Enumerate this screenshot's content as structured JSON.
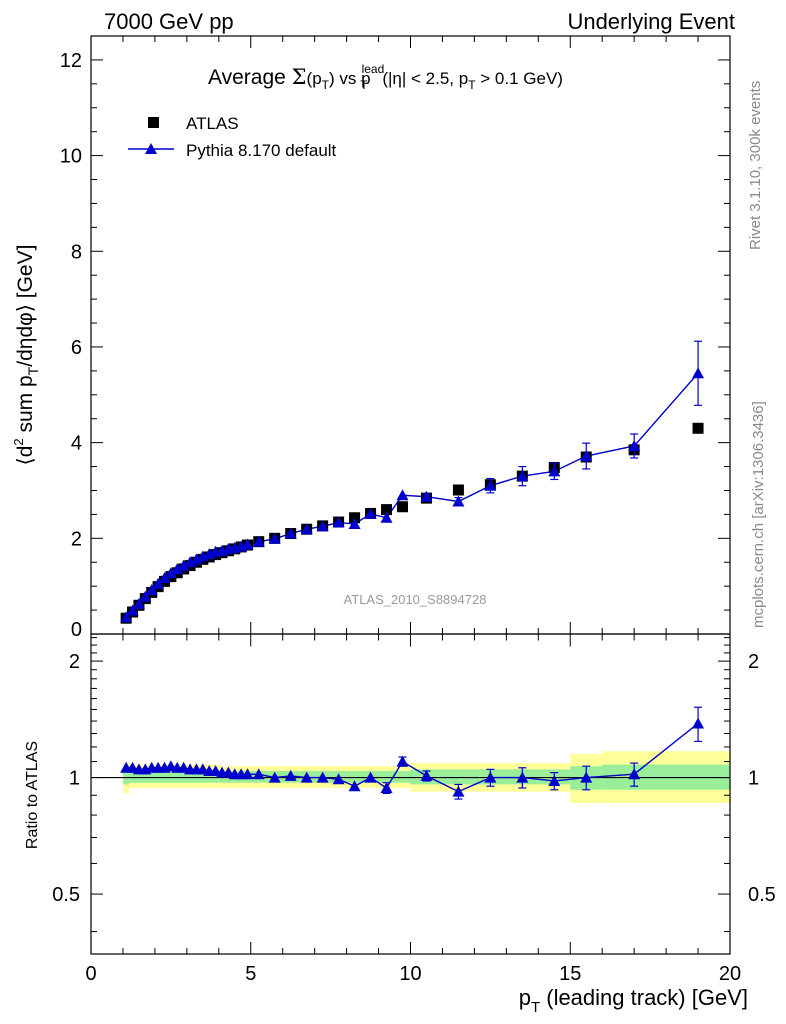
{
  "header": {
    "left": "7000 GeV pp",
    "right": "Underlying Event"
  },
  "title_parts": {
    "prefix": "Average ",
    "sigma": "Σ",
    "arg": "(p",
    "arg_sub": "T",
    "arg_close": ")",
    "vs": " vs p",
    "vs_sup": "lead",
    "vs_sub": "T",
    "cut_a": " (|η| < 2.5, p",
    "cut_sub": "T",
    "cut_b": " > 0.1 GeV)"
  },
  "ylabel_parts": {
    "open": "⟨d",
    "sup2": "2",
    "mid": " sum p",
    "sub": "T",
    "close": "/dηdφ⟩ [GeV]"
  },
  "xlabel_parts": {
    "p": "p",
    "sub": "T",
    "rest": " (leading track) [GeV]"
  },
  "ratio_ylabel": "Ratio to ATLAS",
  "watermark": "ATLAS_2010_S8894728",
  "side_labels": {
    "rivet": "Rivet 3.1.10,  300k events",
    "mcplots": "mcplots.cern.ch [arXiv:1306.3436]"
  },
  "legend": {
    "data_label": "ATLAS",
    "mc_label": "Pythia 8.170 default",
    "position": "top-left"
  },
  "colors": {
    "data": "#000000",
    "mc": "#0000cc",
    "band_inner": "#99ee99",
    "band_outer": "#ffff99"
  },
  "chart_data": [
    {
      "type": "scatter",
      "panel": "main",
      "xlim": [
        0,
        20
      ],
      "ylim": [
        0,
        12.5
      ],
      "xticks": [
        0,
        5,
        10,
        15,
        20
      ],
      "yticks": [
        0,
        2,
        4,
        6,
        8,
        10,
        12
      ],
      "tick_labels_y": [
        "0",
        "2",
        "4",
        "6",
        "8",
        "10",
        "12"
      ],
      "grid": false,
      "series": [
        {
          "name": "ATLAS",
          "marker": "square",
          "x": [
            1.1,
            1.3,
            1.5,
            1.7,
            1.9,
            2.1,
            2.3,
            2.5,
            2.7,
            2.9,
            3.1,
            3.3,
            3.5,
            3.7,
            3.9,
            4.1,
            4.3,
            4.5,
            4.7,
            4.9,
            5.25,
            5.75,
            6.25,
            6.75,
            7.25,
            7.75,
            8.25,
            8.75,
            9.25,
            9.75,
            10.5,
            11.5,
            12.5,
            13.5,
            14.5,
            15.5,
            17.0,
            19.0
          ],
          "y": [
            0.33,
            0.46,
            0.6,
            0.74,
            0.87,
            0.99,
            1.1,
            1.2,
            1.28,
            1.36,
            1.43,
            1.5,
            1.56,
            1.61,
            1.66,
            1.7,
            1.74,
            1.78,
            1.82,
            1.86,
            1.93,
            2.0,
            2.1,
            2.19,
            2.26,
            2.34,
            2.43,
            2.52,
            2.6,
            2.66,
            2.84,
            3.01,
            3.12,
            3.3,
            3.48,
            3.7,
            3.85,
            4.3
          ]
        },
        {
          "name": "Pythia 8.170 default",
          "marker": "triangle",
          "x": [
            1.1,
            1.3,
            1.5,
            1.7,
            1.9,
            2.1,
            2.3,
            2.5,
            2.7,
            2.9,
            3.1,
            3.3,
            3.5,
            3.7,
            3.9,
            4.1,
            4.3,
            4.5,
            4.7,
            4.9,
            5.25,
            5.75,
            6.25,
            6.75,
            7.25,
            7.75,
            8.25,
            8.75,
            9.25,
            9.75,
            10.5,
            11.5,
            12.5,
            13.5,
            14.5,
            15.5,
            17.0,
            19.0
          ],
          "y": [
            0.35,
            0.49,
            0.63,
            0.78,
            0.92,
            1.05,
            1.17,
            1.27,
            1.36,
            1.43,
            1.5,
            1.56,
            1.62,
            1.67,
            1.72,
            1.74,
            1.78,
            1.8,
            1.83,
            1.87,
            1.93,
            1.99,
            2.1,
            2.19,
            2.25,
            2.33,
            2.3,
            2.51,
            2.43,
            2.9,
            2.87,
            2.77,
            3.1,
            3.3,
            3.4,
            3.72,
            3.93,
            5.45
          ],
          "yerr": [
            0,
            0,
            0,
            0,
            0,
            0,
            0,
            0,
            0,
            0,
            0,
            0,
            0,
            0,
            0,
            0,
            0,
            0,
            0,
            0,
            0,
            0,
            0,
            0,
            0,
            0,
            0,
            0,
            0,
            0,
            0.05,
            0.08,
            0.15,
            0.2,
            0.17,
            0.27,
            0.25,
            0.67
          ]
        }
      ]
    },
    {
      "type": "line",
      "panel": "ratio",
      "xlim": [
        0,
        20
      ],
      "ylim": [
        0.35,
        2.35
      ],
      "log_y": true,
      "yticks": [
        0.5,
        1,
        2
      ],
      "tick_labels_y": [
        "0.5",
        "1",
        "2"
      ],
      "tick_labels_x": [
        "0",
        "5",
        "10",
        "15",
        "20"
      ],
      "reference_line": 1,
      "series": [
        {
          "name": "Pythia 8.170 default",
          "x": [
            1.1,
            1.3,
            1.5,
            1.7,
            1.9,
            2.1,
            2.3,
            2.5,
            2.7,
            2.9,
            3.1,
            3.3,
            3.5,
            3.7,
            3.9,
            4.1,
            4.3,
            4.5,
            4.7,
            4.9,
            5.25,
            5.75,
            6.25,
            6.75,
            7.25,
            7.75,
            8.25,
            8.75,
            9.25,
            9.75,
            10.5,
            11.5,
            12.5,
            13.5,
            14.5,
            15.5,
            17.0,
            19.0
          ],
          "y": [
            1.06,
            1.06,
            1.05,
            1.05,
            1.06,
            1.06,
            1.06,
            1.07,
            1.06,
            1.06,
            1.05,
            1.05,
            1.05,
            1.04,
            1.04,
            1.03,
            1.03,
            1.02,
            1.02,
            1.02,
            1.02,
            1.0,
            1.01,
            1.0,
            1.0,
            0.99,
            0.95,
            1.0,
            0.94,
            1.1,
            1.01,
            0.92,
            1.0,
            1.0,
            0.98,
            1.0,
            1.02,
            1.38
          ],
          "yerr": [
            0,
            0,
            0,
            0,
            0,
            0,
            0,
            0,
            0,
            0,
            0,
            0,
            0,
            0,
            0,
            0,
            0,
            0,
            0,
            0,
            0,
            0,
            0,
            0,
            0,
            0,
            0,
            0,
            0.03,
            0.03,
            0.03,
            0.04,
            0.05,
            0.06,
            0.05,
            0.07,
            0.07,
            0.14
          ]
        }
      ],
      "bands": [
        {
          "x0": 1.0,
          "x1": 1.2,
          "inner": [
            0.96,
            1.04
          ],
          "outer": [
            0.91,
            1.09
          ]
        },
        {
          "x0": 1.2,
          "x1": 4.0,
          "inner": [
            0.97,
            1.04
          ],
          "outer": [
            0.94,
            1.08
          ]
        },
        {
          "x0": 4.0,
          "x1": 10.0,
          "inner": [
            0.97,
            1.04
          ],
          "outer": [
            0.94,
            1.07
          ]
        },
        {
          "x0": 10.0,
          "x1": 15.0,
          "inner": [
            0.96,
            1.05
          ],
          "outer": [
            0.92,
            1.09
          ]
        },
        {
          "x0": 15.0,
          "x1": 16.0,
          "inner": [
            0.93,
            1.07
          ],
          "outer": [
            0.86,
            1.15
          ]
        },
        {
          "x0": 16.0,
          "x1": 20.0,
          "inner": [
            0.93,
            1.08
          ],
          "outer": [
            0.86,
            1.17
          ]
        }
      ]
    }
  ]
}
